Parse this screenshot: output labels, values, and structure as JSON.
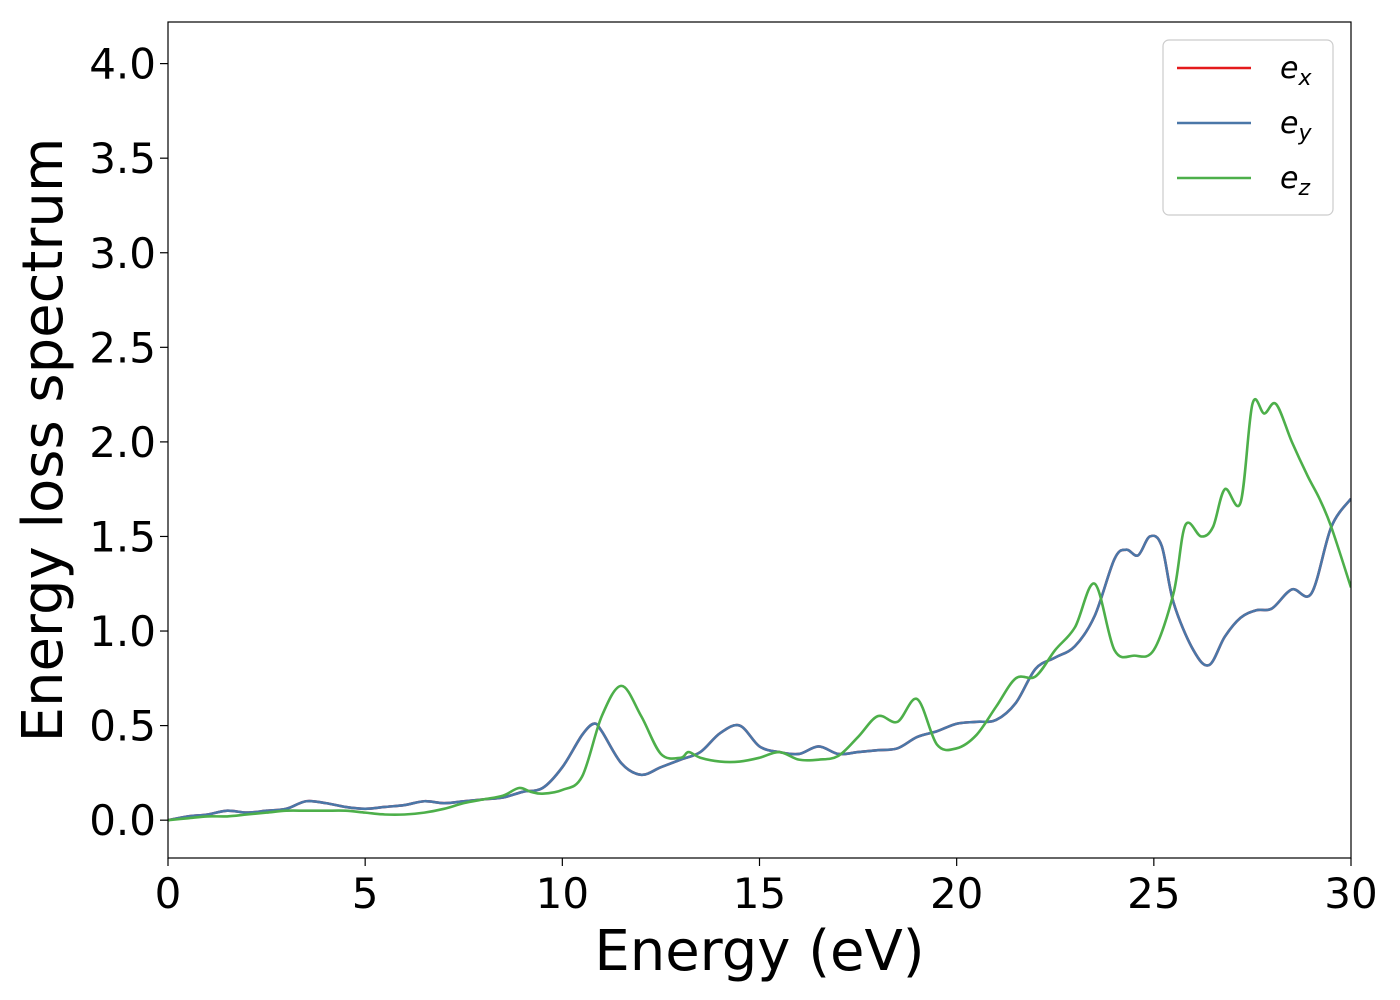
{
  "chart_data": {
    "type": "line",
    "title": "",
    "xlabel": "Energy (eV)",
    "ylabel": "Energy loss spectrum",
    "xlim": [
      0,
      30
    ],
    "ylim": [
      -0.2,
      4.22
    ],
    "xticks": [
      0,
      5,
      10,
      15,
      20,
      25,
      30
    ],
    "xtick_labels": [
      "0",
      "5",
      "10",
      "15",
      "20",
      "25",
      "30"
    ],
    "yticks": [
      0.0,
      0.5,
      1.0,
      1.5,
      2.0,
      2.5,
      3.0,
      3.5,
      4.0
    ],
    "ytick_labels": [
      "0.0",
      "0.5",
      "1.0",
      "1.5",
      "2.0",
      "2.5",
      "3.0",
      "3.5",
      "4.0"
    ],
    "grid": false,
    "legend_position": "top-right",
    "series": [
      {
        "name": "e_x",
        "legend_base": "e",
        "legend_sub": "x",
        "color": "#e41a1c",
        "x": [
          0,
          0.5,
          1,
          1.5,
          2,
          2.5,
          3,
          3.5,
          4,
          4.5,
          5,
          5.5,
          6,
          6.5,
          7,
          7.5,
          8,
          8.5,
          9,
          9.5,
          10,
          10.5,
          10.8,
          11,
          11.5,
          12,
          12.5,
          13,
          13.5,
          14,
          14.5,
          15,
          15.5,
          16,
          16.5,
          17,
          17.5,
          18,
          18.5,
          19,
          19.5,
          20,
          20.5,
          21,
          21.5,
          22,
          22.5,
          23,
          23.5,
          24,
          24.3,
          24.6,
          24.9,
          25.2,
          25.5,
          26,
          26.4,
          26.8,
          27.2,
          27.6,
          28,
          28.5,
          29,
          29.5,
          30
        ],
        "y": [
          0,
          0.02,
          0.03,
          0.05,
          0.04,
          0.05,
          0.06,
          0.1,
          0.09,
          0.07,
          0.06,
          0.07,
          0.08,
          0.1,
          0.09,
          0.1,
          0.11,
          0.12,
          0.15,
          0.17,
          0.28,
          0.45,
          0.51,
          0.47,
          0.3,
          0.24,
          0.28,
          0.32,
          0.36,
          0.46,
          0.5,
          0.39,
          0.36,
          0.35,
          0.39,
          0.35,
          0.36,
          0.37,
          0.38,
          0.44,
          0.47,
          0.51,
          0.52,
          0.53,
          0.62,
          0.8,
          0.86,
          0.92,
          1.08,
          1.38,
          1.43,
          1.4,
          1.5,
          1.45,
          1.15,
          0.9,
          0.82,
          0.97,
          1.07,
          1.11,
          1.12,
          1.22,
          1.2,
          1.55,
          1.7
        ]
      },
      {
        "name": "e_y",
        "legend_base": "e",
        "legend_sub": "y",
        "color": "#4a77a8",
        "x": [
          0,
          0.5,
          1,
          1.5,
          2,
          2.5,
          3,
          3.5,
          4,
          4.5,
          5,
          5.5,
          6,
          6.5,
          7,
          7.5,
          8,
          8.5,
          9,
          9.5,
          10,
          10.5,
          10.8,
          11,
          11.5,
          12,
          12.5,
          13,
          13.5,
          14,
          14.5,
          15,
          15.5,
          16,
          16.5,
          17,
          17.5,
          18,
          18.5,
          19,
          19.5,
          20,
          20.5,
          21,
          21.5,
          22,
          22.5,
          23,
          23.5,
          24,
          24.3,
          24.6,
          24.9,
          25.2,
          25.5,
          26,
          26.4,
          26.8,
          27.2,
          27.6,
          28,
          28.5,
          29,
          29.5,
          30
        ],
        "y": [
          0,
          0.02,
          0.03,
          0.05,
          0.04,
          0.05,
          0.06,
          0.1,
          0.09,
          0.07,
          0.06,
          0.07,
          0.08,
          0.1,
          0.09,
          0.1,
          0.11,
          0.12,
          0.15,
          0.17,
          0.28,
          0.45,
          0.51,
          0.47,
          0.3,
          0.24,
          0.28,
          0.32,
          0.36,
          0.46,
          0.5,
          0.39,
          0.36,
          0.35,
          0.39,
          0.35,
          0.36,
          0.37,
          0.38,
          0.44,
          0.47,
          0.51,
          0.52,
          0.53,
          0.62,
          0.8,
          0.86,
          0.92,
          1.08,
          1.38,
          1.43,
          1.4,
          1.5,
          1.45,
          1.15,
          0.9,
          0.82,
          0.97,
          1.07,
          1.11,
          1.12,
          1.22,
          1.2,
          1.55,
          1.7
        ]
      },
      {
        "name": "e_z",
        "legend_base": "e",
        "legend_sub": "z",
        "color": "#4daf4a",
        "x": [
          0,
          0.5,
          1,
          1.5,
          2,
          2.5,
          3,
          3.5,
          4,
          4.5,
          5,
          5.5,
          6,
          6.5,
          7,
          7.5,
          8,
          8.5,
          8.9,
          9.2,
          9.5,
          10,
          10.5,
          11,
          11.5,
          12,
          12.5,
          13,
          13.2,
          13.5,
          14,
          14.5,
          15,
          15.5,
          16,
          16.5,
          17,
          17.5,
          18,
          18.5,
          19,
          19.5,
          20,
          20.5,
          21,
          21.5,
          22,
          22.5,
          23,
          23.5,
          24,
          24.5,
          25,
          25.5,
          25.8,
          26.2,
          26.5,
          26.8,
          27.2,
          27.5,
          27.8,
          28.1,
          28.5,
          28.9,
          29.2,
          29.5,
          30
        ],
        "y": [
          0,
          0.01,
          0.02,
          0.02,
          0.03,
          0.04,
          0.05,
          0.05,
          0.05,
          0.05,
          0.04,
          0.03,
          0.03,
          0.04,
          0.06,
          0.09,
          0.11,
          0.13,
          0.17,
          0.15,
          0.14,
          0.16,
          0.23,
          0.55,
          0.71,
          0.55,
          0.35,
          0.33,
          0.36,
          0.33,
          0.31,
          0.31,
          0.33,
          0.36,
          0.32,
          0.32,
          0.34,
          0.44,
          0.55,
          0.52,
          0.64,
          0.4,
          0.38,
          0.45,
          0.6,
          0.75,
          0.76,
          0.9,
          1.02,
          1.25,
          0.9,
          0.87,
          0.9,
          1.2,
          1.56,
          1.5,
          1.55,
          1.75,
          1.68,
          2.2,
          2.15,
          2.2,
          2.0,
          1.82,
          1.7,
          1.55,
          1.23
        ]
      }
    ]
  }
}
